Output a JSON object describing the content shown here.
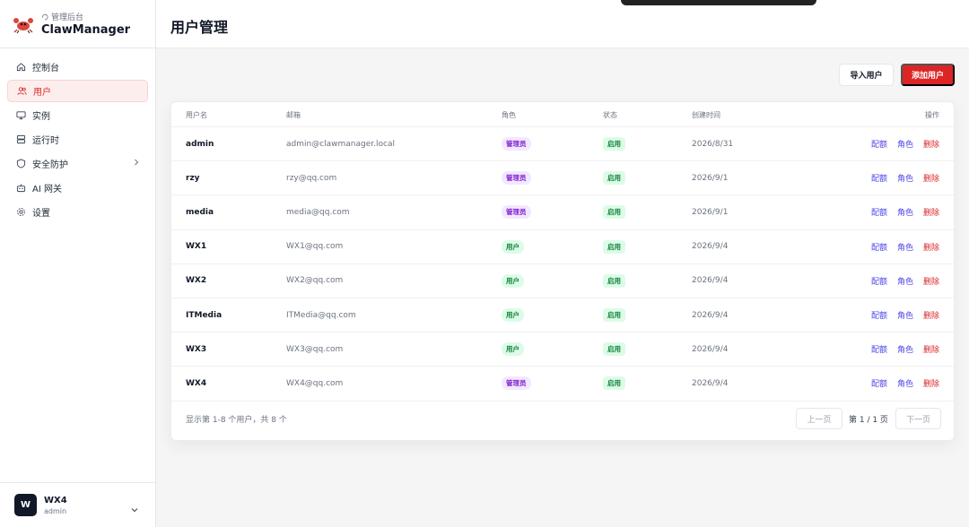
{
  "brand": {
    "subtitle": "管理后台",
    "title": "ClawManager"
  },
  "nav": {
    "items": [
      {
        "label": "控制台",
        "icon": "home-icon"
      },
      {
        "label": "用户",
        "icon": "users-icon",
        "active": true
      },
      {
        "label": "实例",
        "icon": "monitor-icon"
      },
      {
        "label": "运行时",
        "icon": "server-icon"
      },
      {
        "label": "安全防护",
        "icon": "shield-icon"
      },
      {
        "label": "AI 网关",
        "icon": "bot-icon"
      },
      {
        "label": "设置",
        "icon": "gear-icon"
      }
    ]
  },
  "user": {
    "avatar": "W",
    "name": "WX4",
    "role": "admin"
  },
  "header": {
    "title": "用户管理"
  },
  "toolbar": {
    "import_label": "导入用户",
    "add_label": "添加用户"
  },
  "table": {
    "columns": {
      "username": "用户名",
      "email": "邮箱",
      "role": "角色",
      "status": "状态",
      "created": "创建时间",
      "actions": "操作"
    },
    "actions": {
      "quota": "配额",
      "role": "角色",
      "delete": "删除"
    },
    "rows": [
      {
        "username": "admin",
        "email": "admin@clawmanager.local",
        "role": "管理员",
        "role_type": "admin",
        "status": "启用",
        "created": "2026/8/31"
      },
      {
        "username": "rzy",
        "email": "rzy@qq.com",
        "role": "管理员",
        "role_type": "admin",
        "status": "启用",
        "created": "2026/9/1"
      },
      {
        "username": "media",
        "email": "media@qq.com",
        "role": "管理员",
        "role_type": "admin",
        "status": "启用",
        "created": "2026/9/1"
      },
      {
        "username": "WX1",
        "email": "WX1@qq.com",
        "role": "用户",
        "role_type": "user",
        "status": "启用",
        "created": "2026/9/4"
      },
      {
        "username": "WX2",
        "email": "WX2@qq.com",
        "role": "用户",
        "role_type": "user",
        "status": "启用",
        "created": "2026/9/4"
      },
      {
        "username": "ITMedia",
        "email": "ITMedia@qq.com",
        "role": "用户",
        "role_type": "user",
        "status": "启用",
        "created": "2026/9/4"
      },
      {
        "username": "WX3",
        "email": "WX3@qq.com",
        "role": "用户",
        "role_type": "user",
        "status": "启用",
        "created": "2026/9/4"
      },
      {
        "username": "WX4",
        "email": "WX4@qq.com",
        "role": "管理员",
        "role_type": "admin",
        "status": "启用",
        "created": "2026/9/4"
      }
    ]
  },
  "pagination": {
    "summary": "显示第 1-8 个用户，共 8 个",
    "prev": "上一页",
    "page_info": "第 1 / 1 页",
    "next": "下一页"
  },
  "colors": {
    "accent": "#dc2626",
    "link": "#4f46e5",
    "admin_badge": "#7e22ce",
    "user_badge": "#15803d"
  }
}
